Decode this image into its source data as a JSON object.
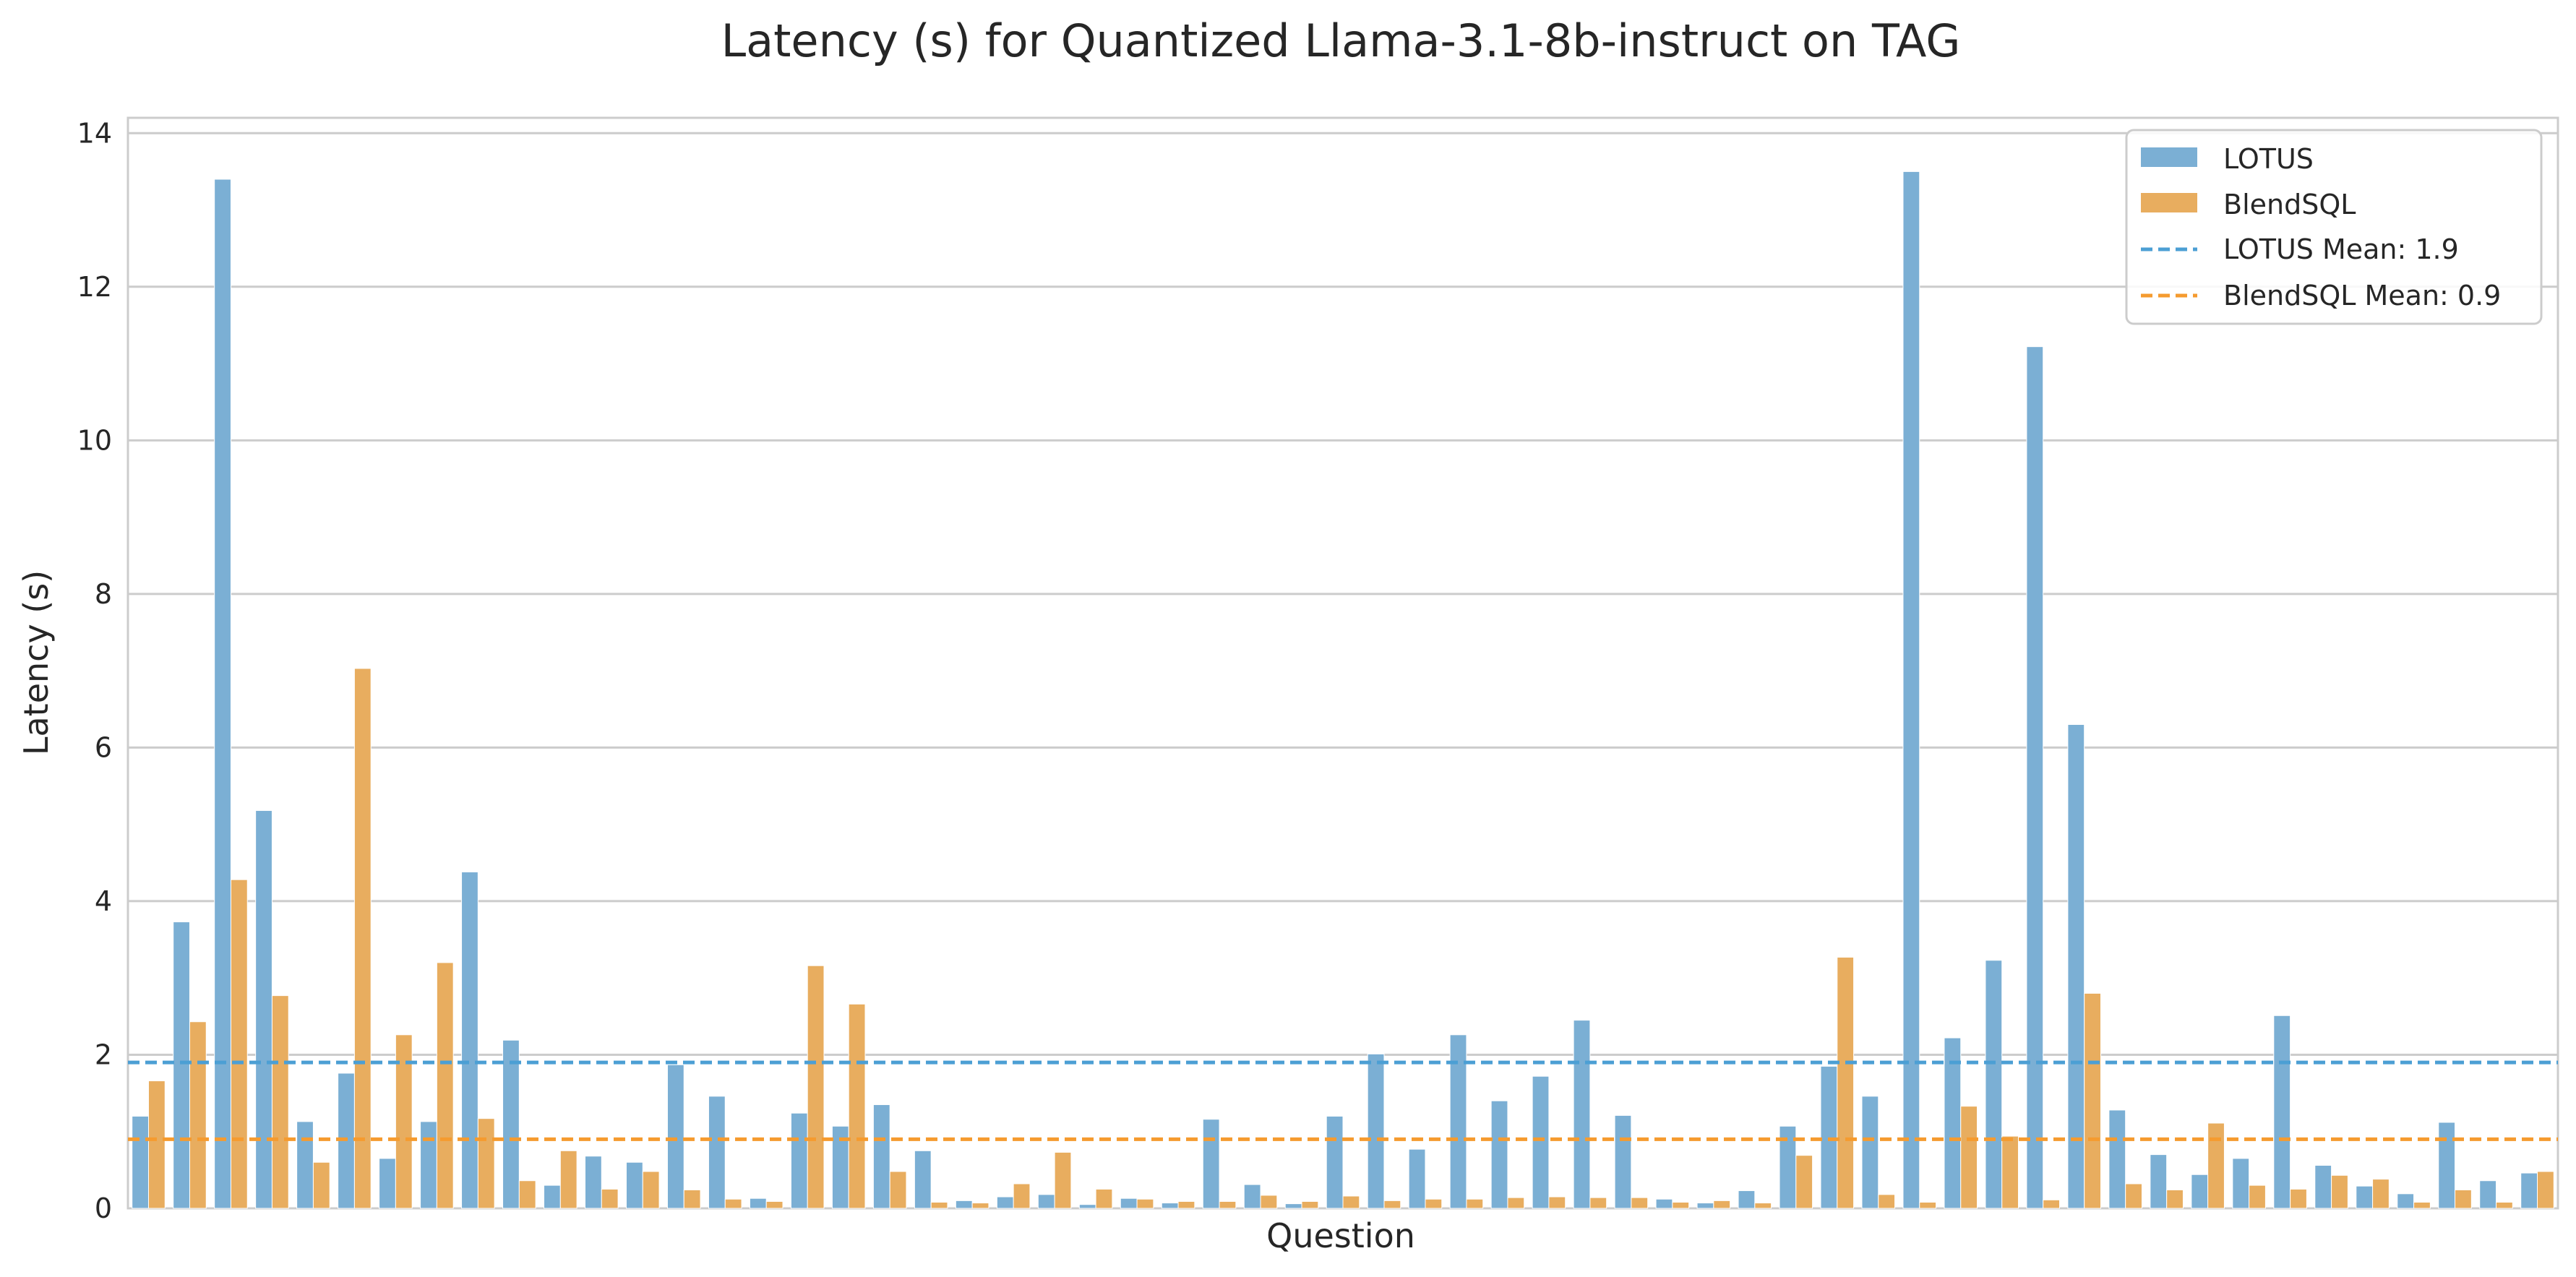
{
  "chart_data": {
    "type": "bar",
    "title": "Latency (s) for Quantized Llama-3.1-8b-instruct on TAG",
    "xlabel": "Question",
    "ylabel": "Latency (s)",
    "ylim": [
      0,
      14.2
    ],
    "yticks": [
      0,
      2,
      4,
      6,
      8,
      10,
      12,
      14
    ],
    "grid": "horizontal",
    "legend_position": "top-right",
    "series": [
      {
        "name": "LOTUS",
        "color": "#7bafd4",
        "values": [
          1.2,
          3.73,
          13.4,
          5.18,
          1.13,
          1.76,
          0.65,
          1.13,
          4.38,
          2.19,
          0.3,
          0.68,
          0.6,
          1.87,
          1.46,
          0.13,
          1.24,
          1.07,
          1.35,
          0.75,
          0.1,
          0.15,
          0.18,
          0.05,
          0.13,
          0.07,
          1.16,
          0.31,
          0.06,
          1.2,
          2.01,
          0.77,
          2.26,
          1.4,
          1.72,
          2.45,
          1.21,
          0.12,
          0.07,
          0.23,
          1.07,
          1.85,
          1.46,
          13.5,
          2.22,
          3.23,
          11.22,
          6.3,
          1.28,
          0.7,
          0.44,
          0.65,
          2.51,
          0.56,
          0.29,
          0.19,
          1.12,
          0.36,
          0.46
        ]
      },
      {
        "name": "BlendSQL",
        "color": "#e8ad5f",
        "values": [
          1.66,
          2.43,
          4.28,
          2.77,
          0.6,
          7.03,
          2.26,
          3.2,
          1.17,
          0.36,
          0.75,
          0.25,
          0.48,
          0.24,
          0.12,
          0.09,
          3.16,
          2.66,
          0.48,
          0.08,
          0.07,
          0.32,
          0.73,
          0.25,
          0.12,
          0.09,
          0.09,
          0.17,
          0.09,
          0.16,
          0.1,
          0.12,
          0.12,
          0.14,
          0.15,
          0.14,
          0.14,
          0.08,
          0.1,
          0.07,
          0.69,
          3.27,
          0.18,
          0.08,
          1.33,
          0.94,
          0.11,
          2.8,
          0.32,
          0.24,
          1.11,
          0.3,
          0.25,
          0.43,
          0.38,
          0.08,
          0.24,
          0.08,
          0.48
        ]
      }
    ],
    "reference_lines": [
      {
        "name": "LOTUS Mean: 1.9",
        "value": 1.9,
        "color": "#4c9fd4",
        "style": "dashed"
      },
      {
        "name": "BlendSQL Mean: 0.9",
        "value": 0.9,
        "color": "#f59b2f",
        "style": "dashed"
      }
    ]
  }
}
